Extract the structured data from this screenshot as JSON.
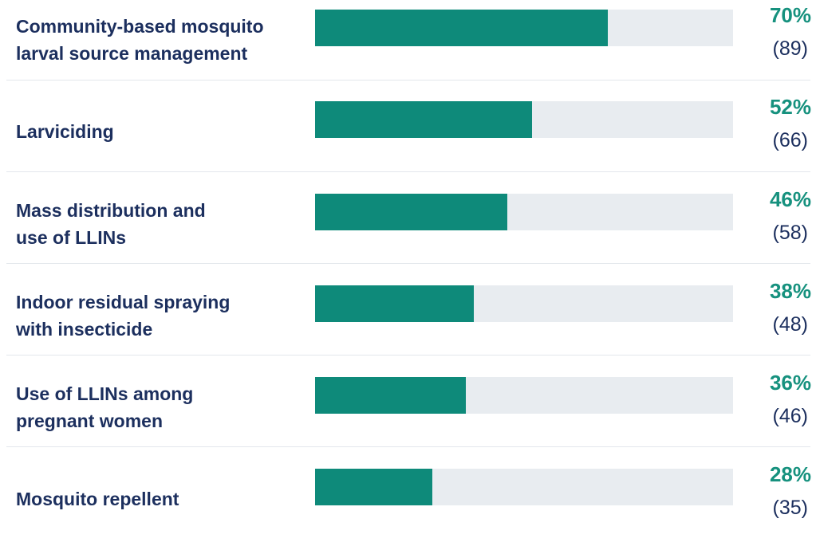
{
  "colors": {
    "bar_fill": "#0e8a7a",
    "bar_track": "#e8ecf0",
    "label_text": "#1c2f5e",
    "percent_text": "#16917e",
    "divider": "#e3e7ec"
  },
  "chart_data": {
    "type": "bar",
    "orientation": "horizontal",
    "title": "",
    "xlabel": "",
    "ylabel": "",
    "xlim": [
      0,
      100
    ],
    "grid": false,
    "categories": [
      "Community-based mosquito\nlarval source management",
      "Larviciding",
      "Mass distribution and\nuse of LLINs",
      "Indoor residual spraying\nwith insecticide",
      "Use of LLINs among\npregnant women",
      "Mosquito repellent"
    ],
    "values": [
      70,
      52,
      46,
      38,
      36,
      28
    ],
    "percent_labels": [
      "70%",
      "52%",
      "46%",
      "38%",
      "36%",
      "28%"
    ],
    "count_labels": [
      "(89)",
      "(66)",
      "(58)",
      "(48)",
      "(46)",
      "(35)"
    ]
  }
}
